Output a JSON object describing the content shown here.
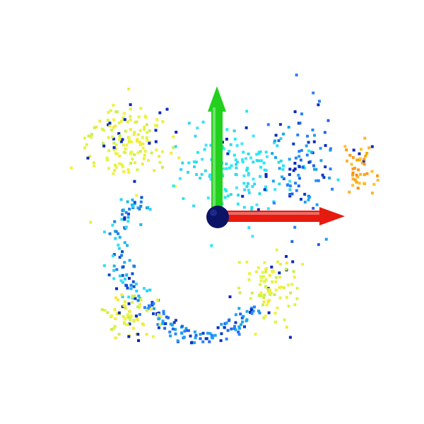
{
  "scene": {
    "type": "point-cloud",
    "background_color": "#ffffff",
    "colormap": "jet",
    "axes": [
      {
        "name": "x-axis",
        "color": "#e61a0f",
        "direction": "right"
      },
      {
        "name": "y-axis",
        "color": "#22d11e",
        "direction": "up"
      }
    ],
    "origin_marker": {
      "color": "#0b1366"
    },
    "point_clusters": [
      {
        "name": "upper-left-lobe",
        "color_band": "yellow",
        "approx_points": 150
      },
      {
        "name": "upper-center-region",
        "color_band": "cyan",
        "approx_points": 160
      },
      {
        "name": "upper-right-region",
        "color_band": "blue",
        "approx_points": 90
      },
      {
        "name": "right-edge-cluster",
        "color_band": "orange",
        "approx_points": 45
      },
      {
        "name": "left-arc",
        "color_band": "cyan-blue",
        "approx_points": 90
      },
      {
        "name": "lower-right-region",
        "color_band": "yellow",
        "approx_points": 90
      },
      {
        "name": "bottom-arc",
        "color_band": "blue",
        "approx_points": 110
      },
      {
        "name": "lower-left-region",
        "color_band": "yellow",
        "approx_points": 70
      }
    ]
  }
}
